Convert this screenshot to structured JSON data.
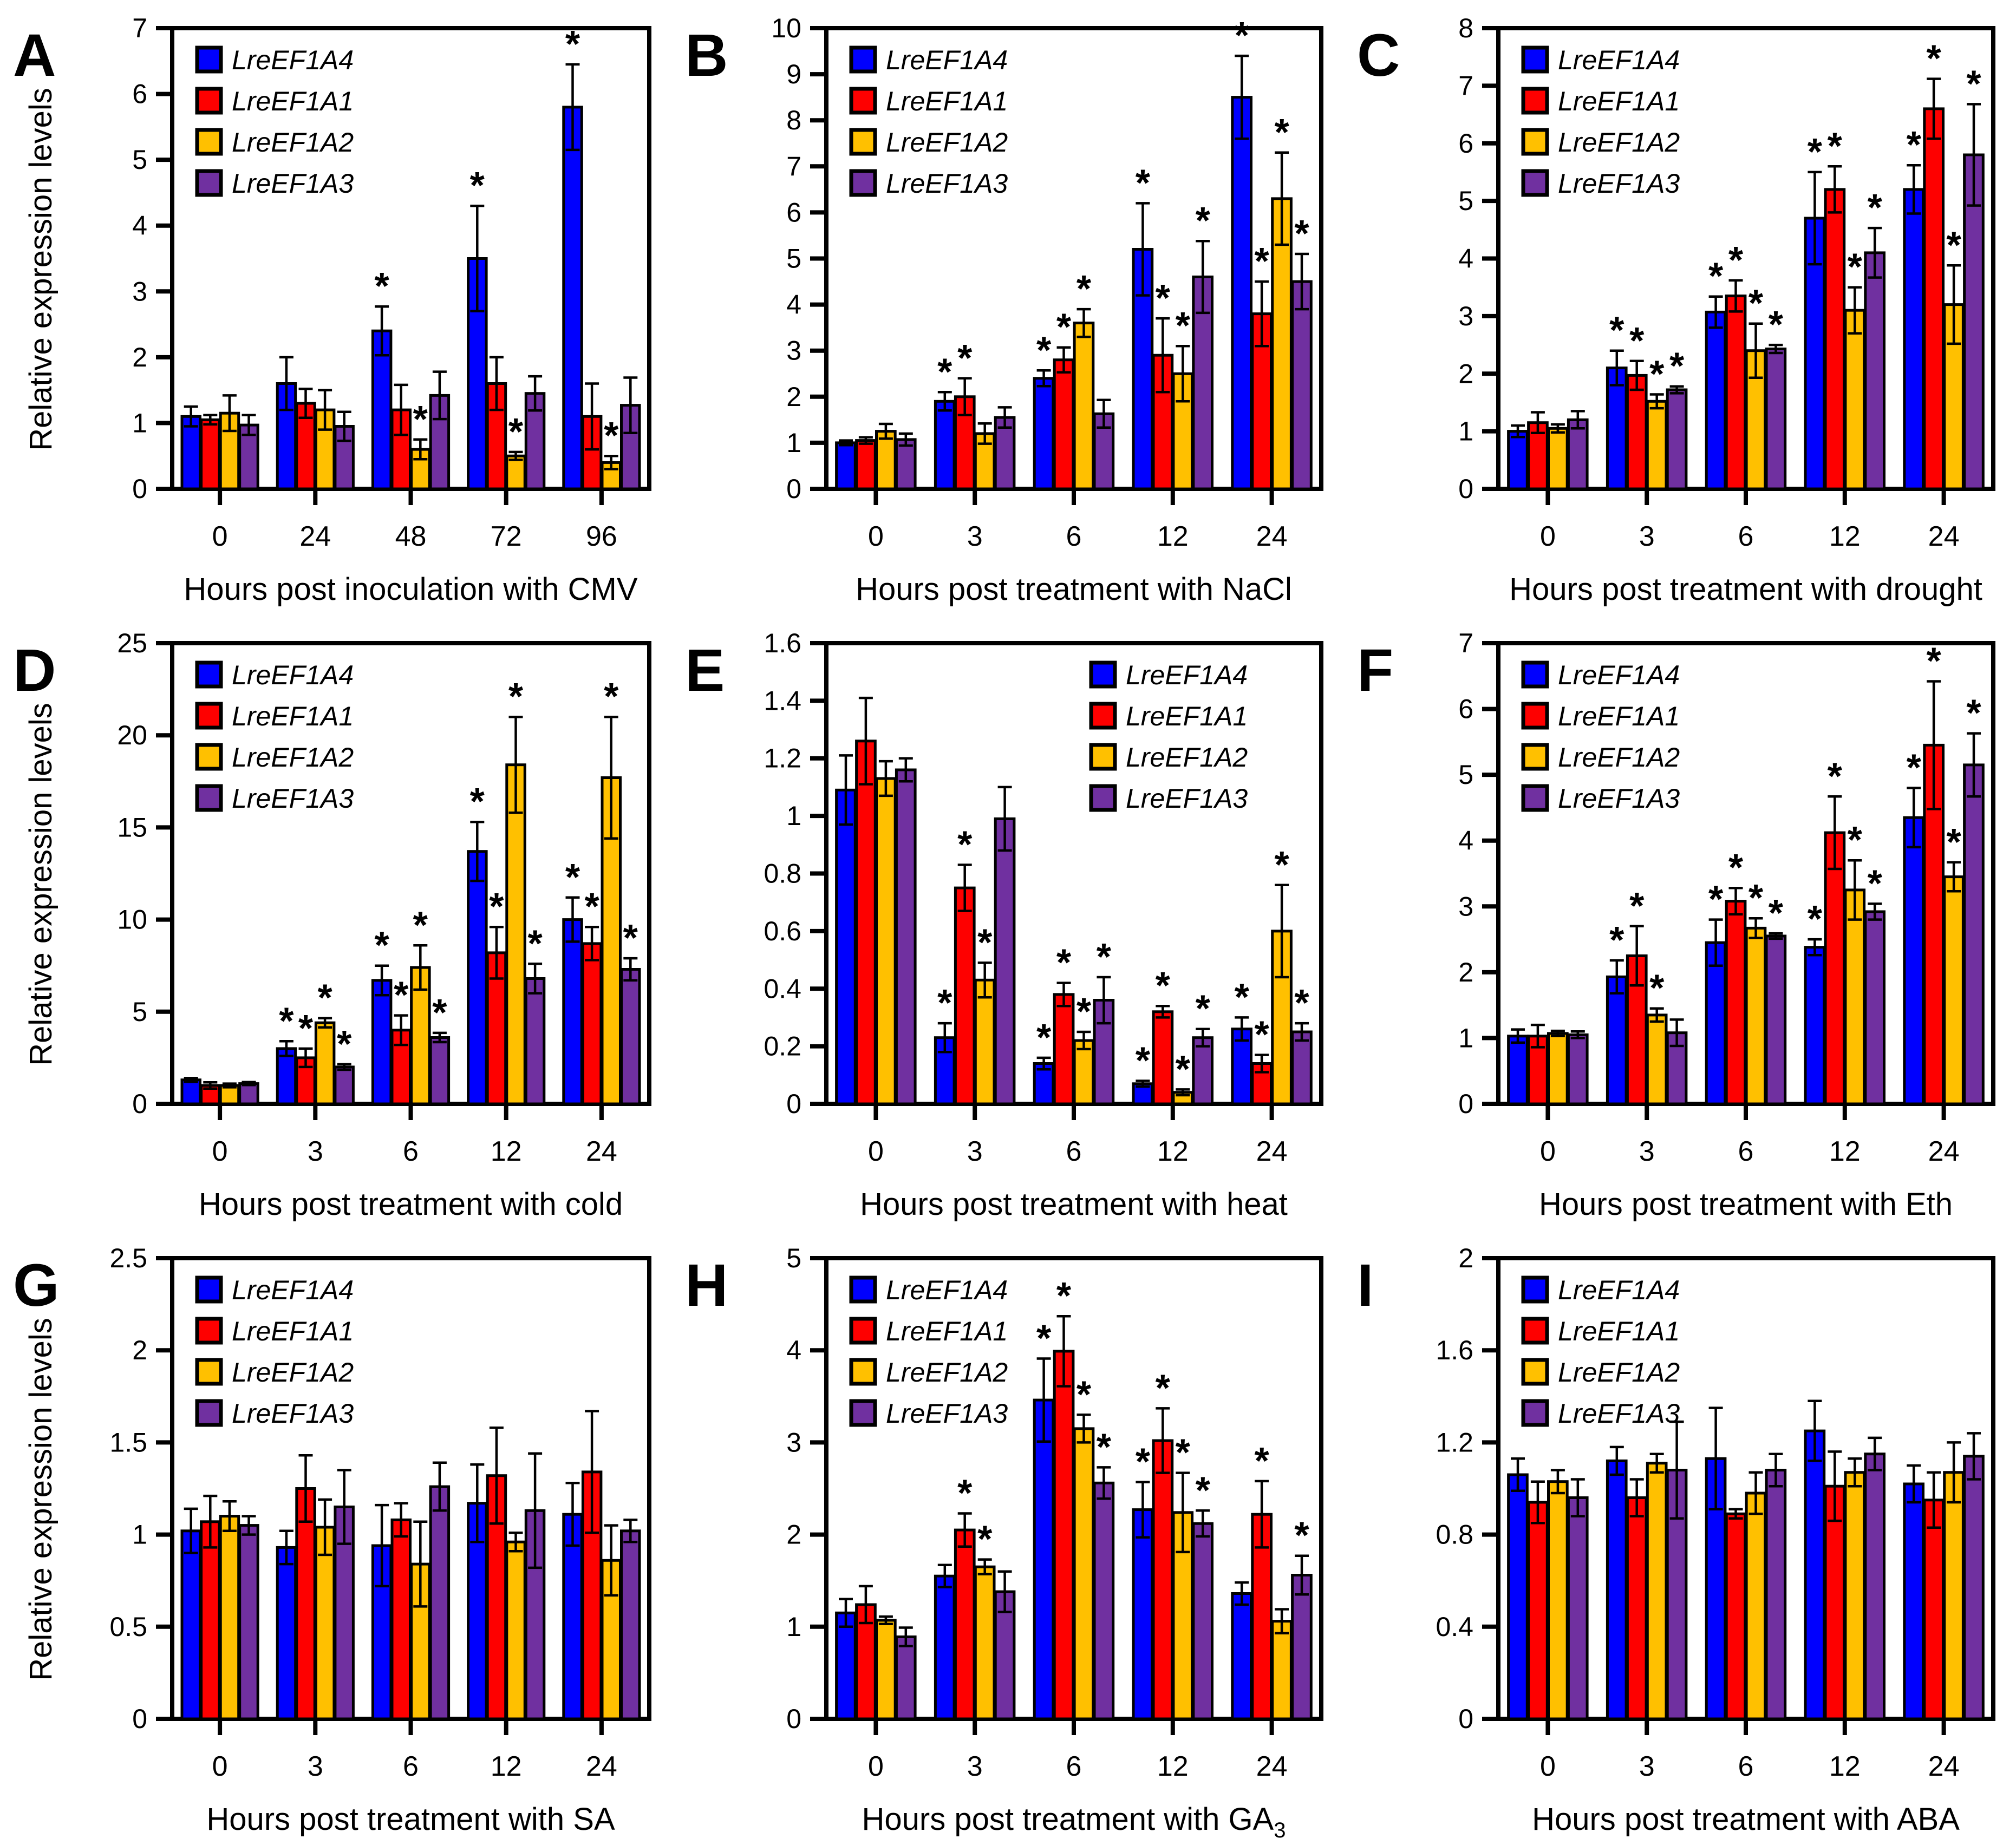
{
  "figure": {
    "background": "#ffffff",
    "text_color": "#000000",
    "shared_ylabel": "Relative expression levels",
    "legend_labels": [
      "LreEF1A4",
      "LreEF1A1",
      "LreEF1A2",
      "LreEF1A3"
    ],
    "series_colors": [
      "#0000fe",
      "#fe0000",
      "#ffc000",
      "#7030a0"
    ],
    "significance_marker": "*"
  },
  "chart_data": [
    {
      "id": "A",
      "letter": "A",
      "type": "bar",
      "xlabel": "Hours post inoculation with CMV",
      "ylabel": "Relative expression levels",
      "ymax": 7,
      "ystep": 1,
      "legend_position": "left",
      "categories": [
        "0",
        "24",
        "48",
        "72",
        "96"
      ],
      "series": [
        {
          "name": "LreEF1A4",
          "color": "#0000fe",
          "values": [
            1.1,
            1.6,
            2.4,
            3.5,
            5.8
          ],
          "errors": [
            0.15,
            0.4,
            0.37,
            0.8,
            0.65
          ],
          "sig": [
            0,
            0,
            1,
            1,
            1
          ]
        },
        {
          "name": "LreEF1A1",
          "color": "#fe0000",
          "values": [
            1.05,
            1.3,
            1.2,
            1.6,
            1.1
          ],
          "errors": [
            0.07,
            0.22,
            0.38,
            0.4,
            0.5
          ],
          "sig": [
            0,
            0,
            0,
            0,
            0
          ]
        },
        {
          "name": "LreEF1A2",
          "color": "#ffc000",
          "values": [
            1.15,
            1.2,
            0.6,
            0.5,
            0.4
          ],
          "errors": [
            0.27,
            0.3,
            0.15,
            0.06,
            0.1
          ],
          "sig": [
            0,
            0,
            1,
            1,
            1
          ]
        },
        {
          "name": "LreEF1A3",
          "color": "#7030a0",
          "values": [
            0.97,
            0.95,
            1.42,
            1.45,
            1.27
          ],
          "errors": [
            0.15,
            0.22,
            0.36,
            0.26,
            0.42
          ],
          "sig": [
            0,
            0,
            0,
            0,
            0
          ]
        }
      ]
    },
    {
      "id": "B",
      "letter": "B",
      "type": "bar",
      "xlabel": "Hours post treatment with NaCl",
      "ylabel": null,
      "ymax": 10,
      "ystep": 1,
      "legend_position": "left",
      "categories": [
        "0",
        "3",
        "6",
        "12",
        "24"
      ],
      "series": [
        {
          "name": "LreEF1A4",
          "color": "#0000fe",
          "values": [
            1.0,
            1.9,
            2.4,
            5.2,
            8.5
          ],
          "errors": [
            0.05,
            0.2,
            0.17,
            1.0,
            0.9
          ],
          "sig": [
            0,
            1,
            1,
            1,
            1
          ]
        },
        {
          "name": "LreEF1A1",
          "color": "#fe0000",
          "values": [
            1.05,
            2.0,
            2.8,
            2.9,
            3.8
          ],
          "errors": [
            0.07,
            0.4,
            0.27,
            0.8,
            0.7
          ],
          "sig": [
            0,
            1,
            1,
            1,
            1
          ]
        },
        {
          "name": "LreEF1A2",
          "color": "#ffc000",
          "values": [
            1.25,
            1.2,
            3.6,
            2.5,
            6.3
          ],
          "errors": [
            0.16,
            0.22,
            0.3,
            0.6,
            1.0
          ],
          "sig": [
            0,
            0,
            1,
            1,
            1
          ]
        },
        {
          "name": "LreEF1A3",
          "color": "#7030a0",
          "values": [
            1.07,
            1.55,
            1.63,
            4.6,
            4.5
          ],
          "errors": [
            0.13,
            0.22,
            0.3,
            0.78,
            0.6
          ],
          "sig": [
            0,
            0,
            0,
            1,
            1
          ]
        }
      ]
    },
    {
      "id": "C",
      "letter": "C",
      "type": "bar",
      "xlabel": "Hours post treatment with drought",
      "ylabel": null,
      "ymax": 8,
      "ystep": 1,
      "legend_position": "left",
      "categories": [
        "0",
        "3",
        "6",
        "12",
        "24"
      ],
      "series": [
        {
          "name": "LreEF1A4",
          "color": "#0000fe",
          "values": [
            1.0,
            2.1,
            3.07,
            4.7,
            5.2
          ],
          "errors": [
            0.1,
            0.3,
            0.27,
            0.8,
            0.42
          ],
          "sig": [
            0,
            1,
            1,
            1,
            1
          ]
        },
        {
          "name": "LreEF1A1",
          "color": "#fe0000",
          "values": [
            1.15,
            1.97,
            3.35,
            5.2,
            6.6
          ],
          "errors": [
            0.18,
            0.25,
            0.27,
            0.4,
            0.52
          ],
          "sig": [
            0,
            1,
            1,
            1,
            1
          ]
        },
        {
          "name": "LreEF1A2",
          "color": "#ffc000",
          "values": [
            1.05,
            1.52,
            2.4,
            3.1,
            3.2
          ],
          "errors": [
            0.07,
            0.12,
            0.47,
            0.4,
            0.68
          ],
          "sig": [
            0,
            1,
            1,
            1,
            1
          ]
        },
        {
          "name": "LreEF1A3",
          "color": "#7030a0",
          "values": [
            1.2,
            1.72,
            2.43,
            4.1,
            5.8
          ],
          "errors": [
            0.15,
            0.06,
            0.07,
            0.43,
            0.88
          ],
          "sig": [
            0,
            1,
            1,
            1,
            1
          ]
        }
      ]
    },
    {
      "id": "D",
      "letter": "D",
      "type": "bar",
      "xlabel": "Hours post treatment with cold",
      "ylabel": "Relative expression levels",
      "ymax": 25,
      "ystep": 5,
      "legend_position": "left",
      "categories": [
        "0",
        "3",
        "6",
        "12",
        "24"
      ],
      "series": [
        {
          "name": "LreEF1A4",
          "color": "#0000fe",
          "values": [
            1.3,
            3.0,
            6.7,
            13.7,
            10.0
          ],
          "errors": [
            0.1,
            0.4,
            0.8,
            1.6,
            1.2
          ],
          "sig": [
            0,
            1,
            1,
            1,
            1
          ]
        },
        {
          "name": "LreEF1A1",
          "color": "#fe0000",
          "values": [
            1.0,
            2.5,
            4.0,
            8.2,
            8.7
          ],
          "errors": [
            0.17,
            0.5,
            0.8,
            1.4,
            0.9
          ],
          "sig": [
            0,
            1,
            1,
            1,
            1
          ]
        },
        {
          "name": "LreEF1A2",
          "color": "#ffc000",
          "values": [
            1.0,
            4.4,
            7.4,
            18.4,
            17.7
          ],
          "errors": [
            0.1,
            0.25,
            1.2,
            2.6,
            3.3
          ],
          "sig": [
            0,
            1,
            1,
            1,
            1
          ]
        },
        {
          "name": "LreEF1A3",
          "color": "#7030a0",
          "values": [
            1.1,
            2.0,
            3.6,
            6.8,
            7.3
          ],
          "errors": [
            0.08,
            0.15,
            0.25,
            0.8,
            0.6
          ],
          "sig": [
            0,
            1,
            1,
            1,
            1
          ]
        }
      ]
    },
    {
      "id": "E",
      "letter": "E",
      "type": "bar",
      "xlabel": "Hours post treatment with heat",
      "ylabel": null,
      "ymax": 1.6,
      "ystep": 0.2,
      "legend_position": "right",
      "categories": [
        "0",
        "3",
        "6",
        "12",
        "24"
      ],
      "series": [
        {
          "name": "LreEF1A4",
          "color": "#0000fe",
          "values": [
            1.09,
            0.23,
            0.14,
            0.07,
            0.26
          ],
          "errors": [
            0.12,
            0.05,
            0.02,
            0.01,
            0.04
          ],
          "sig": [
            0,
            1,
            1,
            1,
            1
          ]
        },
        {
          "name": "LreEF1A1",
          "color": "#fe0000",
          "values": [
            1.26,
            0.75,
            0.38,
            0.32,
            0.14
          ],
          "errors": [
            0.15,
            0.08,
            0.04,
            0.02,
            0.03
          ],
          "sig": [
            0,
            1,
            1,
            1,
            1
          ]
        },
        {
          "name": "LreEF1A2",
          "color": "#ffc000",
          "values": [
            1.13,
            0.43,
            0.22,
            0.04,
            0.6
          ],
          "errors": [
            0.06,
            0.06,
            0.03,
            0.01,
            0.16
          ],
          "sig": [
            0,
            1,
            1,
            1,
            1
          ]
        },
        {
          "name": "LreEF1A3",
          "color": "#7030a0",
          "values": [
            1.16,
            0.99,
            0.36,
            0.23,
            0.25
          ],
          "errors": [
            0.04,
            0.11,
            0.08,
            0.03,
            0.03
          ],
          "sig": [
            0,
            0,
            1,
            1,
            1
          ]
        }
      ]
    },
    {
      "id": "F",
      "letter": "F",
      "type": "bar",
      "xlabel": "Hours post treatment with Eth",
      "ylabel": null,
      "ymax": 7,
      "ystep": 1,
      "legend_position": "left",
      "categories": [
        "0",
        "3",
        "6",
        "12",
        "24"
      ],
      "series": [
        {
          "name": "LreEF1A4",
          "color": "#0000fe",
          "values": [
            1.03,
            1.93,
            2.45,
            2.38,
            4.35
          ],
          "errors": [
            0.1,
            0.25,
            0.35,
            0.12,
            0.45
          ],
          "sig": [
            0,
            1,
            1,
            1,
            1
          ]
        },
        {
          "name": "LreEF1A1",
          "color": "#fe0000",
          "values": [
            1.03,
            2.25,
            3.08,
            4.12,
            5.45
          ],
          "errors": [
            0.17,
            0.45,
            0.2,
            0.55,
            0.97
          ],
          "sig": [
            0,
            1,
            1,
            1,
            1
          ]
        },
        {
          "name": "LreEF1A2",
          "color": "#ffc000",
          "values": [
            1.07,
            1.35,
            2.67,
            3.25,
            3.45
          ],
          "errors": [
            0.04,
            0.1,
            0.15,
            0.45,
            0.22
          ],
          "sig": [
            0,
            1,
            1,
            1,
            1
          ]
        },
        {
          "name": "LreEF1A3",
          "color": "#7030a0",
          "values": [
            1.05,
            1.08,
            2.55,
            2.92,
            5.15
          ],
          "errors": [
            0.05,
            0.2,
            0.04,
            0.12,
            0.48
          ],
          "sig": [
            0,
            0,
            1,
            1,
            1
          ]
        }
      ]
    },
    {
      "id": "G",
      "letter": "G",
      "type": "bar",
      "xlabel": "Hours post treatment with SA",
      "ylabel": "Relative expression levels",
      "ymax": 2.5,
      "ystep": 0.5,
      "legend_position": "left",
      "categories": [
        "0",
        "3",
        "6",
        "12",
        "24"
      ],
      "series": [
        {
          "name": "LreEF1A4",
          "color": "#0000fe",
          "values": [
            1.02,
            0.93,
            0.94,
            1.17,
            1.11
          ],
          "errors": [
            0.12,
            0.09,
            0.22,
            0.21,
            0.17
          ],
          "sig": [
            0,
            0,
            0,
            0,
            0
          ]
        },
        {
          "name": "LreEF1A1",
          "color": "#fe0000",
          "values": [
            1.07,
            1.25,
            1.08,
            1.32,
            1.34
          ],
          "errors": [
            0.14,
            0.18,
            0.09,
            0.26,
            0.33
          ],
          "sig": [
            0,
            0,
            0,
            0,
            0
          ]
        },
        {
          "name": "LreEF1A2",
          "color": "#ffc000",
          "values": [
            1.1,
            1.04,
            0.84,
            0.96,
            0.86
          ],
          "errors": [
            0.08,
            0.15,
            0.23,
            0.05,
            0.19
          ],
          "sig": [
            0,
            0,
            0,
            0,
            0
          ]
        },
        {
          "name": "LreEF1A3",
          "color": "#7030a0",
          "values": [
            1.05,
            1.15,
            1.26,
            1.13,
            1.02
          ],
          "errors": [
            0.05,
            0.2,
            0.13,
            0.31,
            0.06
          ],
          "sig": [
            0,
            0,
            0,
            0,
            0
          ]
        }
      ]
    },
    {
      "id": "H",
      "letter": "H",
      "type": "bar",
      "xlabel": "Hours post treatment with GA",
      "xlabel_sub": "3",
      "ylabel": null,
      "ymax": 5,
      "ystep": 1,
      "legend_position": "left",
      "categories": [
        "0",
        "3",
        "6",
        "12",
        "24"
      ],
      "series": [
        {
          "name": "LreEF1A4",
          "color": "#0000fe",
          "values": [
            1.15,
            1.55,
            3.46,
            2.27,
            1.36
          ],
          "errors": [
            0.15,
            0.12,
            0.45,
            0.3,
            0.12
          ],
          "sig": [
            0,
            0,
            1,
            1,
            0
          ]
        },
        {
          "name": "LreEF1A1",
          "color": "#fe0000",
          "values": [
            1.24,
            2.05,
            3.99,
            3.02,
            2.22
          ],
          "errors": [
            0.2,
            0.18,
            0.38,
            0.35,
            0.36
          ],
          "sig": [
            0,
            1,
            1,
            1,
            1
          ]
        },
        {
          "name": "LreEF1A2",
          "color": "#ffc000",
          "values": [
            1.07,
            1.65,
            3.15,
            2.24,
            1.06
          ],
          "errors": [
            0.04,
            0.08,
            0.15,
            0.43,
            0.13
          ],
          "sig": [
            0,
            1,
            1,
            1,
            0
          ]
        },
        {
          "name": "LreEF1A3",
          "color": "#7030a0",
          "values": [
            0.89,
            1.38,
            2.56,
            2.12,
            1.56
          ],
          "errors": [
            0.1,
            0.22,
            0.17,
            0.14,
            0.21
          ],
          "sig": [
            0,
            0,
            1,
            1,
            1
          ]
        }
      ]
    },
    {
      "id": "I",
      "letter": "I",
      "type": "bar",
      "xlabel": "Hours post treatment with ABA",
      "ylabel": null,
      "ymax": 2,
      "ystep": 0.4,
      "legend_position": "left",
      "categories": [
        "0",
        "3",
        "6",
        "12",
        "24"
      ],
      "series": [
        {
          "name": "LreEF1A4",
          "color": "#0000fe",
          "values": [
            1.06,
            1.12,
            1.13,
            1.25,
            1.02
          ],
          "errors": [
            0.07,
            0.06,
            0.22,
            0.13,
            0.08
          ],
          "sig": [
            0,
            0,
            0,
            0,
            0
          ]
        },
        {
          "name": "LreEF1A1",
          "color": "#fe0000",
          "values": [
            0.94,
            0.96,
            0.89,
            1.01,
            0.95
          ],
          "errors": [
            0.09,
            0.08,
            0.02,
            0.15,
            0.12
          ],
          "sig": [
            0,
            0,
            0,
            0,
            0
          ]
        },
        {
          "name": "LreEF1A2",
          "color": "#ffc000",
          "values": [
            1.03,
            1.11,
            0.98,
            1.07,
            1.07
          ],
          "errors": [
            0.05,
            0.04,
            0.09,
            0.06,
            0.13
          ],
          "sig": [
            0,
            0,
            0,
            0,
            0
          ]
        },
        {
          "name": "LreEF1A3",
          "color": "#7030a0",
          "values": [
            0.96,
            1.08,
            1.08,
            1.15,
            1.14
          ],
          "errors": [
            0.08,
            0.21,
            0.07,
            0.07,
            0.1
          ],
          "sig": [
            0,
            0,
            0,
            0,
            0
          ]
        }
      ]
    }
  ]
}
